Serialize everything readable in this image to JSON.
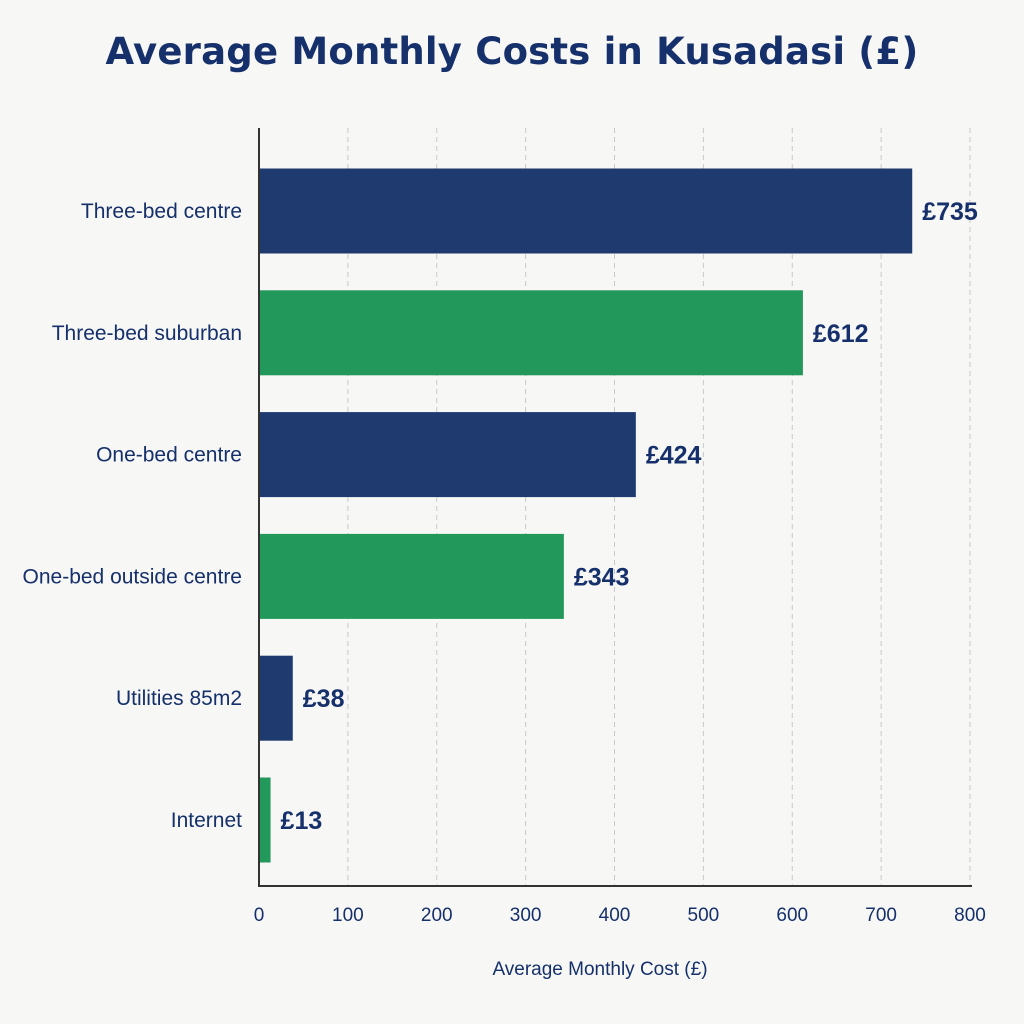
{
  "chart_data": {
    "type": "bar",
    "orientation": "horizontal",
    "title": "Average Monthly Costs in Kusadasi (£)",
    "xlabel": "Average Monthly Cost (£)",
    "ylabel": "",
    "xlim": [
      0,
      800
    ],
    "xticks": [
      0,
      100,
      200,
      300,
      400,
      500,
      600,
      700,
      800
    ],
    "grid": true,
    "categories": [
      "Three-bed centre",
      "Three-bed suburban",
      "One-bed centre",
      "One-bed outside centre",
      "Utilities 85m2",
      "Internet"
    ],
    "values": [
      735,
      612,
      424,
      343,
      38,
      13
    ],
    "value_labels": [
      "£735",
      "£612",
      "£424",
      "£343",
      "£38",
      "£13"
    ],
    "colors": [
      "#1e3a6e",
      "#22985a",
      "#1e3a6e",
      "#22985a",
      "#1e3a6e",
      "#22985a"
    ]
  }
}
